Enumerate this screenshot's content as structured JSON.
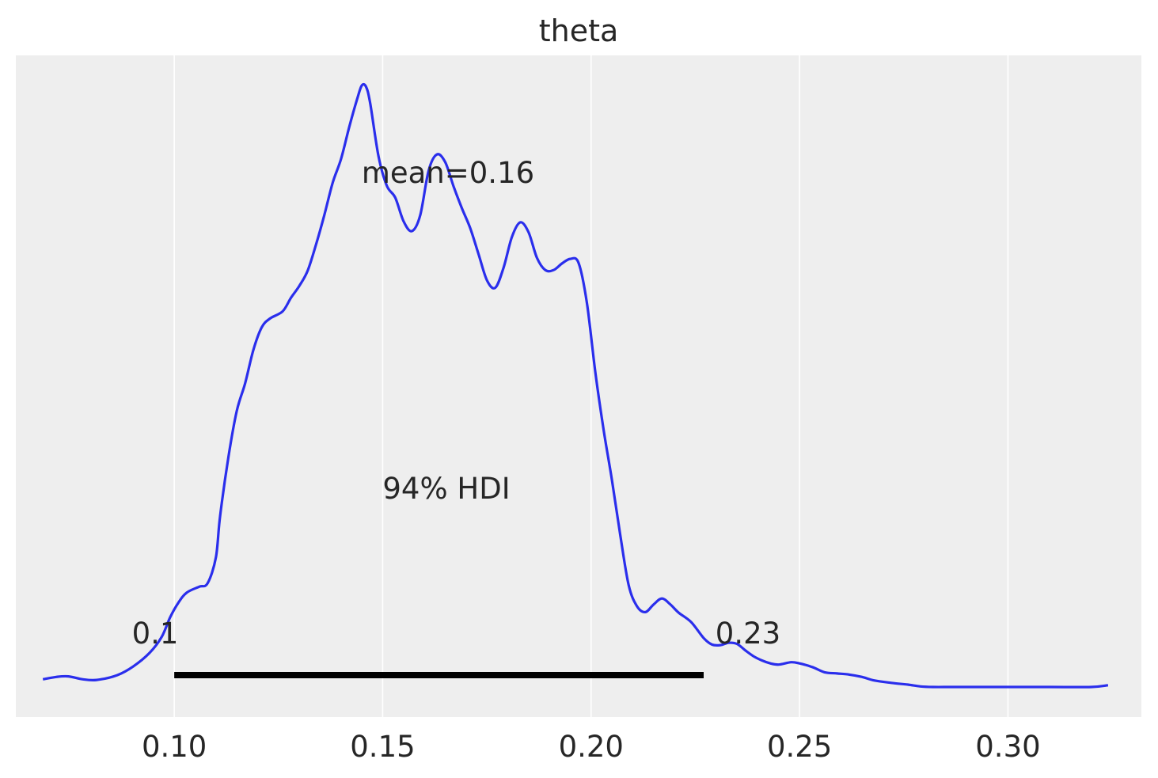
{
  "chart_data": {
    "type": "area",
    "title": "theta",
    "xlabel": "",
    "ylabel": "",
    "xlim": [
      0.062,
      0.332
    ],
    "ylim": [
      0,
      1
    ],
    "x_ticks": [
      0.1,
      0.15,
      0.2,
      0.25,
      0.3
    ],
    "x_tick_labels": [
      "0.10",
      "0.15",
      "0.20",
      "0.25",
      "0.30"
    ],
    "grid": true,
    "line_color": "#2a2eec",
    "background_color": "#eeeeee",
    "grid_color": "#ffffff",
    "series": [
      {
        "x": [
          0.0685,
          0.0717,
          0.0746,
          0.0781,
          0.0814,
          0.0863,
          0.0902,
          0.0941,
          0.097,
          0.099,
          0.101,
          0.103,
          0.106,
          0.108,
          0.11,
          0.111,
          0.113,
          0.115,
          0.117,
          0.119,
          0.121,
          0.123,
          0.126,
          0.128,
          0.13,
          0.132,
          0.134,
          0.136,
          0.138,
          0.14,
          0.142,
          0.144,
          0.145,
          0.146,
          0.147,
          0.149,
          0.151,
          0.153,
          0.155,
          0.157,
          0.159,
          0.161,
          0.163,
          0.165,
          0.167,
          0.169,
          0.171,
          0.173,
          0.175,
          0.177,
          0.179,
          0.181,
          0.183,
          0.185,
          0.187,
          0.189,
          0.191,
          0.193,
          0.195,
          0.197,
          0.199,
          0.201,
          0.203,
          0.205,
          0.207,
          0.209,
          0.211,
          0.213,
          0.215,
          0.217,
          0.219,
          0.221,
          0.224,
          0.227,
          0.229,
          0.231,
          0.233,
          0.235,
          0.237,
          0.239,
          0.241,
          0.243,
          0.245,
          0.248,
          0.25,
          0.253,
          0.256,
          0.259,
          0.262,
          0.265,
          0.268,
          0.272,
          0.276,
          0.279,
          0.282,
          0.286,
          0.29,
          0.3,
          0.31,
          0.32,
          0.324
        ],
        "y": [
          0.013,
          0.017,
          0.018,
          0.013,
          0.012,
          0.02,
          0.035,
          0.058,
          0.085,
          0.118,
          0.143,
          0.16,
          0.17,
          0.176,
          0.22,
          0.29,
          0.39,
          0.468,
          0.515,
          0.572,
          0.61,
          0.625,
          0.637,
          0.66,
          0.68,
          0.706,
          0.75,
          0.8,
          0.855,
          0.895,
          0.95,
          1.0,
          1.02,
          1.018,
          0.99,
          0.9,
          0.85,
          0.83,
          0.79,
          0.773,
          0.8,
          0.875,
          0.903,
          0.89,
          0.849,
          0.812,
          0.778,
          0.734,
          0.69,
          0.677,
          0.711,
          0.763,
          0.788,
          0.771,
          0.728,
          0.707,
          0.707,
          0.718,
          0.726,
          0.719,
          0.651,
          0.534,
          0.436,
          0.351,
          0.257,
          0.173,
          0.137,
          0.127,
          0.14,
          0.15,
          0.14,
          0.126,
          0.11,
          0.083,
          0.072,
          0.071,
          0.075,
          0.073,
          0.062,
          0.052,
          0.045,
          0.04,
          0.038,
          0.042,
          0.04,
          0.034,
          0.025,
          0.023,
          0.021,
          0.017,
          0.011,
          0.007,
          0.004,
          0.001,
          0.0,
          0.0,
          0.0,
          0.0,
          0.0,
          0.0,
          0.003
        ]
      }
    ],
    "annotations": {
      "mean_label": "mean=0.16",
      "hdi_label": "94% HDI",
      "hdi_low": 0.1,
      "hdi_high": 0.227,
      "hdi_low_label": "0.1",
      "hdi_high_label": "0.23"
    }
  }
}
